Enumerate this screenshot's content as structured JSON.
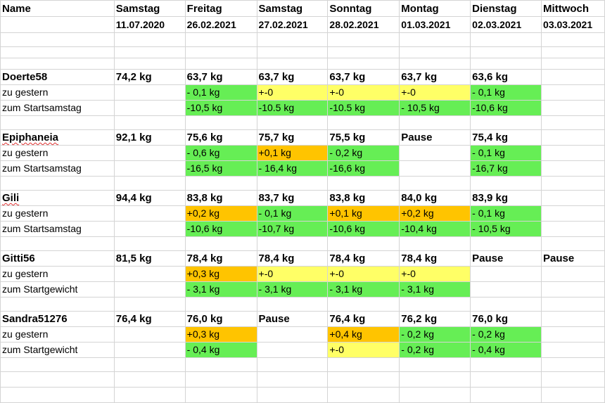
{
  "header": {
    "name_label": "Name",
    "columns": [
      {
        "day": "Samstag",
        "date": "11.07.2020"
      },
      {
        "day": "Freitag",
        "date": "26.02.2021"
      },
      {
        "day": "Samstag",
        "date": "27.02.2021"
      },
      {
        "day": "Sonntag",
        "date": "28.02.2021"
      },
      {
        "day": "Montag",
        "date": "01.03.2021"
      },
      {
        "day": "Dienstag",
        "date": "02.03.2021"
      },
      {
        "day": "Mittwoch",
        "date": "03.03.2021"
      }
    ]
  },
  "colors": {
    "green": "#66ee55",
    "yellow": "#ffff66",
    "orange": "#ffc400"
  },
  "people": [
    {
      "name": "Doerte58",
      "weights": [
        "74,2 kg",
        "63,7 kg",
        "63,7 kg",
        "63,7 kg",
        "63,7 kg",
        "63,6 kg",
        ""
      ],
      "row2_label": "zu gestern",
      "row2": [
        "",
        "- 0,1 kg",
        "+-0",
        "+-0",
        "+-0",
        "- 0,1 kg",
        ""
      ],
      "row3_label": "zum Startsamstag",
      "row3": [
        "",
        "-10,5 kg",
        "-10.5 kg",
        "-10.5 kg",
        "- 10,5 kg",
        "-10,6 kg",
        ""
      ]
    },
    {
      "name": "Epiphaneia",
      "weights": [
        "92,1 kg",
        "75,6 kg",
        "75,7 kg",
        "75,5 kg",
        "Pause",
        "75,4 kg",
        ""
      ],
      "row2_label": "zu gestern",
      "row2": [
        "",
        "- 0,6 kg",
        "+0,1 kg",
        "- 0,2 kg",
        "",
        "- 0,1 kg",
        ""
      ],
      "row3_label": "zum Startsamstag",
      "row3": [
        "",
        "-16,5 kg",
        "- 16,4 kg",
        "-16,6 kg",
        "",
        "-16,7 kg",
        ""
      ]
    },
    {
      "name": "Gili",
      "weights": [
        "94,4 kg",
        "83,8 kg",
        "83,7 kg",
        "83,8 kg",
        "84,0 kg",
        "83,9 kg",
        ""
      ],
      "row2_label": "zu gestern",
      "row2": [
        "",
        "+0,2 kg",
        "- 0,1 kg",
        "+0,1 kg",
        "+0,2 kg",
        "- 0,1 kg",
        ""
      ],
      "row3_label": "zum Startsamstag",
      "row3": [
        "",
        "-10,6 kg",
        "-10,7 kg",
        "-10,6 kg",
        "-10,4 kg",
        "- 10,5 kg",
        ""
      ]
    },
    {
      "name": "Gitti56",
      "weights": [
        "81,5 kg",
        "78,4 kg",
        "78,4 kg",
        "78,4 kg",
        "78,4 kg",
        "Pause",
        "Pause"
      ],
      "row2_label": "zu gestern",
      "row2": [
        "",
        "+0,3 kg",
        "+-0",
        "+-0",
        "+-0",
        "",
        ""
      ],
      "row3_label": "zum Startgewicht",
      "row3": [
        "",
        "- 3,1 kg",
        "- 3,1 kg",
        "- 3,1 kg",
        "- 3,1 kg",
        "",
        ""
      ]
    },
    {
      "name": "Sandra51276",
      "weights": [
        "76,4 kg",
        "76,0 kg",
        "Pause",
        "76,4 kg",
        "76,2 kg",
        "76,0 kg",
        ""
      ],
      "row2_label": "zu gestern",
      "row2": [
        "",
        "+0,3 kg",
        "",
        "+0,4 kg",
        "- 0,2 kg",
        "- 0,2 kg",
        ""
      ],
      "row3_label": "zum Startgewicht",
      "row3": [
        "",
        "- 0,4 kg",
        "",
        "+-0",
        "- 0,2 kg",
        "- 0,4 kg",
        ""
      ]
    }
  ]
}
